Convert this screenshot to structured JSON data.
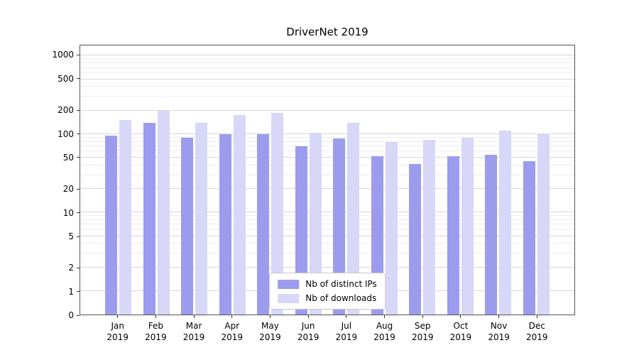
{
  "title": "DriverNet 2019",
  "chart_data": {
    "type": "bar",
    "title": "DriverNet 2019",
    "categories": [
      "Jan",
      "Feb",
      "Mar",
      "Apr",
      "May",
      "Jun",
      "Jul",
      "Aug",
      "Sep",
      "Oct",
      "Nov",
      "Dec"
    ],
    "category_year": "2019",
    "series": [
      {
        "name": "Nb of distinct IPs",
        "color": "#9c9cee",
        "values": [
          95,
          140,
          90,
          100,
          100,
          70,
          88,
          52,
          42,
          52,
          55,
          45
        ]
      },
      {
        "name": "Nb of downloads",
        "color": "#d7d7f8",
        "values": [
          150,
          200,
          140,
          175,
          185,
          105,
          140,
          80,
          85,
          90,
          110,
          100
        ]
      }
    ],
    "yscale": "symlog",
    "yticks": [
      0,
      1,
      2,
      5,
      10,
      20,
      50,
      100,
      200,
      500,
      1000
    ],
    "ylim": [
      0,
      1350
    ],
    "grid": true,
    "legend_position": "lower center"
  }
}
